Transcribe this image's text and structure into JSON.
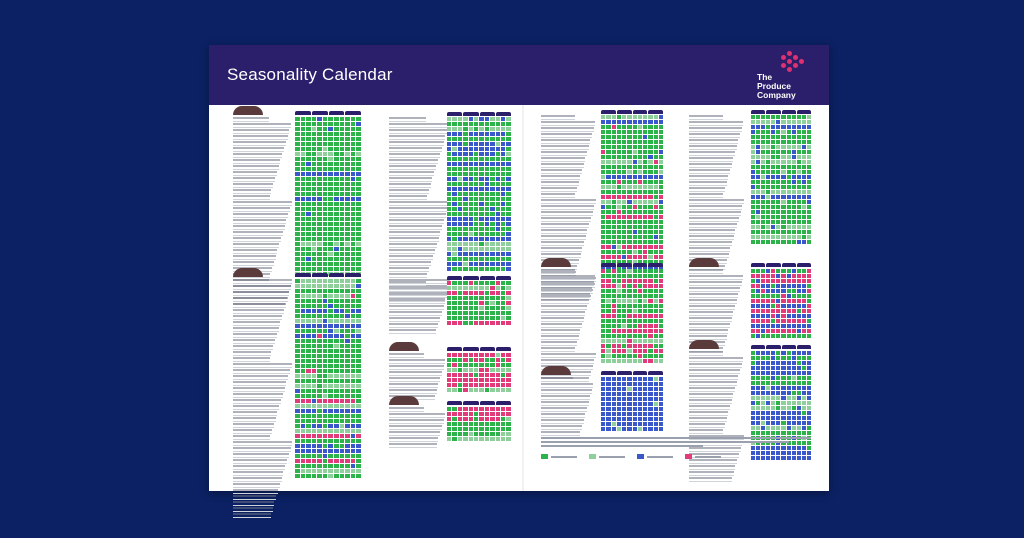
{
  "document": {
    "title": "Seasonality Calendar",
    "logo": {
      "text": "The\nProduce\nCompany",
      "icon": "hexagon-dots-icon"
    }
  },
  "colors": {
    "background": "#0b2163",
    "header": "#2b1f6b",
    "in_season": "#2cb34a",
    "imported": "#3a58c9",
    "limited": "#e23b7a",
    "transition": "#8fcf9b",
    "logo_dots": "#e0306f"
  },
  "calendar_sections": [
    {
      "id": "s1",
      "rows": 32,
      "pattern": "green-dominant"
    },
    {
      "id": "s2",
      "rows": 40,
      "pattern": "mixed"
    },
    {
      "id": "s3",
      "rows": 31,
      "pattern": "green-blue"
    },
    {
      "id": "s4",
      "rows": 9,
      "pattern": "green-pink"
    },
    {
      "id": "s5",
      "rows": 8,
      "pattern": "pink-green"
    },
    {
      "id": "s6",
      "rows": 7,
      "pattern": "green-pink"
    },
    {
      "id": "s7",
      "rows": 31,
      "pattern": "green-pink-blue"
    },
    {
      "id": "s8",
      "rows": 19,
      "pattern": "green-pink"
    },
    {
      "id": "s9",
      "rows": 11,
      "pattern": "blue-dominant"
    },
    {
      "id": "s10",
      "rows": 26,
      "pattern": "green-blue"
    },
    {
      "id": "s11",
      "rows": 14,
      "pattern": "pink-blue"
    },
    {
      "id": "s12",
      "rows": 22,
      "pattern": "blue-green"
    }
  ]
}
